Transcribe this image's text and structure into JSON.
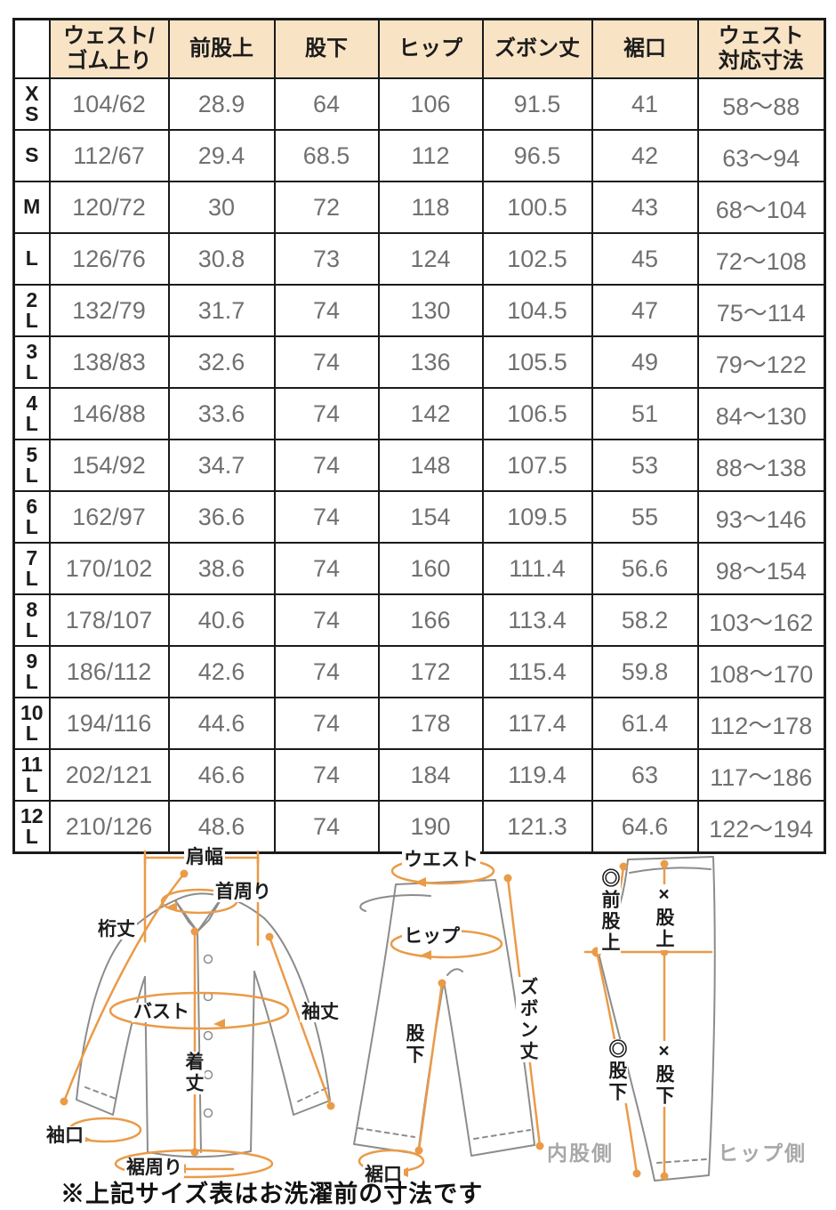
{
  "colors": {
    "header_bg": "#f8e3c5",
    "border": "#1a1a1a",
    "data_text": "#707070",
    "label_text": "#1c1c1c",
    "accent_orange": "#ea9b48",
    "garment_gray": "#8c8c8c",
    "side_label_gray": "#a8a8a8"
  },
  "table": {
    "columns": [
      "",
      "ウェスト/\nゴム上り",
      "前股上",
      "股下",
      "ヒップ",
      "ズボン丈",
      "裾口",
      "ウェスト\n対応寸法"
    ],
    "rows": [
      {
        "size": "XS",
        "values": [
          "104/62",
          "28.9",
          "64",
          "106",
          "91.5",
          "41",
          "58〜88"
        ]
      },
      {
        "size": "S",
        "values": [
          "112/67",
          "29.4",
          "68.5",
          "112",
          "96.5",
          "42",
          "63〜94"
        ]
      },
      {
        "size": "M",
        "values": [
          "120/72",
          "30",
          "72",
          "118",
          "100.5",
          "43",
          "68〜104"
        ]
      },
      {
        "size": "L",
        "values": [
          "126/76",
          "30.8",
          "73",
          "124",
          "102.5",
          "45",
          "72〜108"
        ]
      },
      {
        "size": "2L",
        "values": [
          "132/79",
          "31.7",
          "74",
          "130",
          "104.5",
          "47",
          "75〜114"
        ]
      },
      {
        "size": "3L",
        "values": [
          "138/83",
          "32.6",
          "74",
          "136",
          "105.5",
          "49",
          "79〜122"
        ]
      },
      {
        "size": "4L",
        "values": [
          "146/88",
          "33.6",
          "74",
          "142",
          "106.5",
          "51",
          "84〜130"
        ]
      },
      {
        "size": "5L",
        "values": [
          "154/92",
          "34.7",
          "74",
          "148",
          "107.5",
          "53",
          "88〜138"
        ]
      },
      {
        "size": "6L",
        "values": [
          "162/97",
          "36.6",
          "74",
          "154",
          "109.5",
          "55",
          "93〜146"
        ]
      },
      {
        "size": "7L",
        "values": [
          "170/102",
          "38.6",
          "74",
          "160",
          "111.4",
          "56.6",
          "98〜154"
        ]
      },
      {
        "size": "8L",
        "values": [
          "178/107",
          "40.6",
          "74",
          "166",
          "113.4",
          "58.2",
          "103〜162"
        ]
      },
      {
        "size": "9L",
        "values": [
          "186/112",
          "42.6",
          "74",
          "172",
          "115.4",
          "59.8",
          "108〜170"
        ]
      },
      {
        "size": "10L",
        "values": [
          "194/116",
          "44.6",
          "74",
          "178",
          "117.4",
          "61.4",
          "112〜178"
        ]
      },
      {
        "size": "11L",
        "values": [
          "202/121",
          "46.6",
          "74",
          "184",
          "119.4",
          "63",
          "117〜186"
        ]
      },
      {
        "size": "12L",
        "values": [
          "210/126",
          "48.6",
          "74",
          "190",
          "121.3",
          "64.6",
          "122〜194"
        ]
      }
    ]
  },
  "diagrams": {
    "shirt": {
      "shoulder_width": "肩幅",
      "neck": "首周り",
      "yuki_length": "桁丈",
      "bust": "バスト",
      "sleeve_length": "袖丈",
      "body_length": "着丈",
      "cuff": "袖口",
      "hem_around": "裾周り"
    },
    "pants_front": {
      "waist": "ウエスト",
      "hip": "ヒップ",
      "inseam": "股下",
      "pants_length": "ズボン丈",
      "hem": "裾口"
    },
    "pants_side": {
      "front_rise": "◎前股上",
      "rise": "×股上",
      "inseam_a": "◎股下",
      "inseam_b": "×股下",
      "inner_side": "内股側",
      "hip_side": "ヒップ側"
    }
  },
  "note": "※上記サイズ表はお洗濯前の寸法です"
}
